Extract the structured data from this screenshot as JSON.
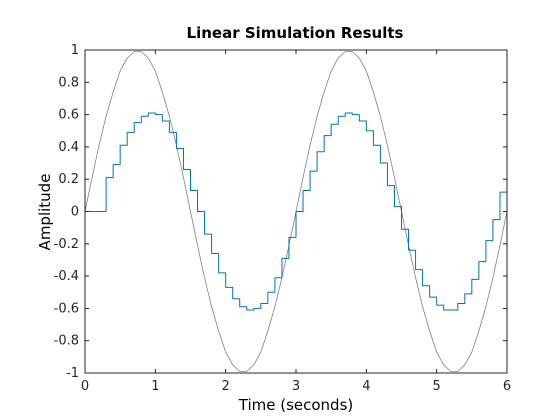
{
  "chart_data": {
    "type": "line",
    "title": "Linear Simulation Results",
    "xlabel": "Time (seconds)",
    "ylabel": "Amplitude",
    "xlim": [
      0,
      6
    ],
    "ylim": [
      -1,
      1
    ],
    "xticks": [
      0,
      1,
      2,
      3,
      4,
      5,
      6
    ],
    "yticks": [
      -1,
      -0.8,
      -0.6,
      -0.4,
      -0.2,
      0,
      0.2,
      0.4,
      0.6,
      0.8,
      1
    ],
    "xtick_labels": [
      "0",
      "1",
      "2",
      "3",
      "4",
      "5",
      "6"
    ],
    "ytick_labels": [
      "-1",
      "-0.8",
      "-0.6",
      "-0.4",
      "-0.2",
      "0",
      "0.2",
      "0.4",
      "0.6",
      "0.8",
      "1"
    ],
    "grid": false,
    "series": [
      {
        "kind": "input",
        "style": "smooth",
        "color": "#808080",
        "x": [
          0,
          0.1,
          0.2,
          0.3,
          0.4,
          0.5,
          0.6,
          0.7,
          0.8,
          0.9,
          1.0,
          1.1,
          1.2,
          1.3,
          1.4,
          1.5,
          1.6,
          1.7,
          1.8,
          1.9,
          2.0,
          2.1,
          2.2,
          2.3,
          2.4,
          2.5,
          2.6,
          2.7,
          2.8,
          2.9,
          3.0,
          3.1,
          3.2,
          3.3,
          3.4,
          3.5,
          3.6,
          3.7,
          3.8,
          3.9,
          4.0,
          4.1,
          4.2,
          4.3,
          4.4,
          4.5,
          4.6,
          4.7,
          4.8,
          4.9,
          5.0,
          5.1,
          5.2,
          5.3,
          5.4,
          5.5,
          5.6,
          5.7,
          5.8,
          5.9,
          6.0
        ],
        "y": [
          0,
          0.21,
          0.41,
          0.59,
          0.74,
          0.87,
          0.95,
          0.99,
          0.99,
          0.95,
          0.87,
          0.74,
          0.59,
          0.41,
          0.21,
          0,
          -0.21,
          -0.41,
          -0.59,
          -0.74,
          -0.87,
          -0.95,
          -0.99,
          -0.99,
          -0.95,
          -0.87,
          -0.74,
          -0.59,
          -0.41,
          -0.21,
          0,
          0.21,
          0.41,
          0.59,
          0.74,
          0.87,
          0.95,
          0.99,
          0.99,
          0.95,
          0.87,
          0.74,
          0.59,
          0.41,
          0.21,
          0,
          -0.21,
          -0.41,
          -0.59,
          -0.74,
          -0.87,
          -0.95,
          -0.99,
          -0.99,
          -0.95,
          -0.87,
          -0.74,
          -0.59,
          -0.41,
          -0.21,
          0
        ]
      },
      {
        "kind": "response",
        "style": "stairs",
        "color": "#0072bd",
        "x": [
          0,
          0.1,
          0.2,
          0.3,
          0.4,
          0.5,
          0.6,
          0.7,
          0.8,
          0.9,
          1.0,
          1.1,
          1.2,
          1.3,
          1.4,
          1.5,
          1.6,
          1.7,
          1.8,
          1.9,
          2.0,
          2.1,
          2.2,
          2.3,
          2.4,
          2.5,
          2.6,
          2.7,
          2.8,
          2.9,
          3.0,
          3.1,
          3.2,
          3.3,
          3.4,
          3.5,
          3.6,
          3.7,
          3.8,
          3.9,
          4.0,
          4.1,
          4.2,
          4.3,
          4.4,
          4.5,
          4.6,
          4.7,
          4.8,
          4.9,
          5.0,
          5.1,
          5.2,
          5.3,
          5.4,
          5.5,
          5.6,
          5.7,
          5.8,
          5.9,
          6.0
        ],
        "y": [
          0,
          0,
          0,
          0.21,
          0.29,
          0.41,
          0.49,
          0.55,
          0.59,
          0.61,
          0.6,
          0.56,
          0.49,
          0.39,
          0.26,
          0.13,
          0,
          -0.14,
          -0.26,
          -0.38,
          -0.47,
          -0.54,
          -0.59,
          -0.61,
          -0.6,
          -0.57,
          -0.5,
          -0.41,
          -0.29,
          -0.16,
          0,
          0.13,
          0.25,
          0.37,
          0.47,
          0.54,
          0.59,
          0.61,
          0.6,
          0.56,
          0.5,
          0.41,
          0.3,
          0.16,
          0.03,
          -0.11,
          -0.24,
          -0.36,
          -0.46,
          -0.53,
          -0.58,
          -0.61,
          -0.61,
          -0.57,
          -0.51,
          -0.42,
          -0.31,
          -0.18,
          -0.05,
          0.12,
          0.12
        ]
      }
    ]
  }
}
